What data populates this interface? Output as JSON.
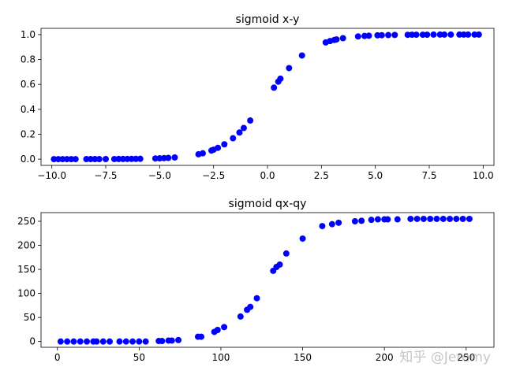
{
  "watermark": "知乎 @Jeremy",
  "chart_data": [
    {
      "type": "scatter",
      "title": "sigmoid x-y",
      "xlabel": "",
      "ylabel": "",
      "xlim": [
        -10.5,
        10.5
      ],
      "ylim": [
        -0.05,
        1.05
      ],
      "xticks": [
        -10.0,
        -7.5,
        -5.0,
        -2.5,
        0.0,
        2.5,
        5.0,
        7.5,
        10.0
      ],
      "xtick_labels": [
        "−10.0",
        "−7.5",
        "−5.0",
        "−2.5",
        "0.0",
        "2.5",
        "5.0",
        "7.5",
        "10.0"
      ],
      "yticks": [
        0.0,
        0.2,
        0.4,
        0.6,
        0.8,
        1.0
      ],
      "ytick_labels": [
        "0.0",
        "0.2",
        "0.4",
        "0.6",
        "0.8",
        "1.0"
      ],
      "marker_color": "#0000ff",
      "grid": false,
      "x": [
        -9.9,
        -9.7,
        -9.5,
        -9.3,
        -9.1,
        -8.9,
        -8.4,
        -8.2,
        -8.0,
        -7.8,
        -7.5,
        -7.1,
        -6.9,
        -6.7,
        -6.5,
        -6.3,
        -6.1,
        -5.9,
        -5.2,
        -5.0,
        -4.8,
        -4.6,
        -4.3,
        -3.2,
        -3.0,
        -2.6,
        -2.5,
        -2.3,
        -2.0,
        -1.6,
        -1.3,
        -1.1,
        -0.8,
        0.3,
        0.5,
        0.6,
        1.0,
        1.6,
        2.7,
        2.9,
        3.1,
        3.2,
        3.5,
        4.2,
        4.5,
        4.7,
        5.1,
        5.3,
        5.6,
        5.9,
        6.5,
        6.7,
        6.9,
        7.2,
        7.4,
        7.7,
        8.0,
        8.2,
        8.5,
        8.9,
        9.1,
        9.3,
        9.6,
        9.8
      ],
      "y": [
        5e-05,
        6e-05,
        7e-05,
        9e-05,
        0.00011,
        0.00014,
        0.00022,
        0.00027,
        0.00034,
        0.00041,
        0.00055,
        0.00082,
        0.001,
        0.0012,
        0.0015,
        0.0018,
        0.0022,
        0.0027,
        0.0055,
        0.0067,
        0.0082,
        0.01,
        0.0134,
        0.039,
        0.047,
        0.069,
        0.076,
        0.091,
        0.119,
        0.168,
        0.214,
        0.25,
        0.31,
        0.574,
        0.622,
        0.646,
        0.731,
        0.832,
        0.937,
        0.948,
        0.957,
        0.961,
        0.971,
        0.985,
        0.989,
        0.991,
        0.994,
        0.995,
        0.996,
        0.997,
        0.998,
        0.999,
        0.999,
        0.999,
        0.999,
        1.0,
        1.0,
        1.0,
        1.0,
        1.0,
        1.0,
        1.0,
        1.0,
        1.0
      ]
    },
    {
      "type": "scatter",
      "title": "sigmoid qx-qy",
      "xlabel": "",
      "ylabel": "",
      "xlim": [
        -10,
        267
      ],
      "ylim": [
        -12,
        268
      ],
      "xticks": [
        0,
        50,
        100,
        150,
        200,
        250
      ],
      "xtick_labels": [
        "0",
        "50",
        "100",
        "150",
        "200",
        "250"
      ],
      "yticks": [
        0,
        50,
        100,
        150,
        200,
        250
      ],
      "ytick_labels": [
        "0",
        "50",
        "100",
        "150",
        "200",
        "250"
      ],
      "marker_color": "#0000ff",
      "grid": false,
      "x": [
        2,
        6,
        10,
        14,
        18,
        22,
        24,
        28,
        32,
        38,
        42,
        46,
        50,
        54,
        62,
        64,
        68,
        70,
        74,
        86,
        88,
        96,
        98,
        102,
        112,
        116,
        118,
        122,
        132,
        134,
        136,
        140,
        150,
        162,
        168,
        172,
        182,
        186,
        192,
        196,
        200,
        202,
        208,
        216,
        220,
        224,
        228,
        232,
        236,
        240,
        244,
        248,
        252
      ],
      "y": [
        0,
        0,
        0,
        0,
        0,
        0,
        0,
        0,
        0,
        0,
        0,
        0,
        0,
        0,
        1,
        1,
        2,
        2,
        3,
        10,
        10,
        20,
        24,
        30,
        52,
        66,
        72,
        90,
        147,
        155,
        160,
        183,
        214,
        240,
        244,
        247,
        250,
        251,
        253,
        254,
        254,
        254,
        254,
        255,
        255,
        255,
        255,
        255,
        255,
        255,
        255,
        255,
        255
      ]
    }
  ]
}
